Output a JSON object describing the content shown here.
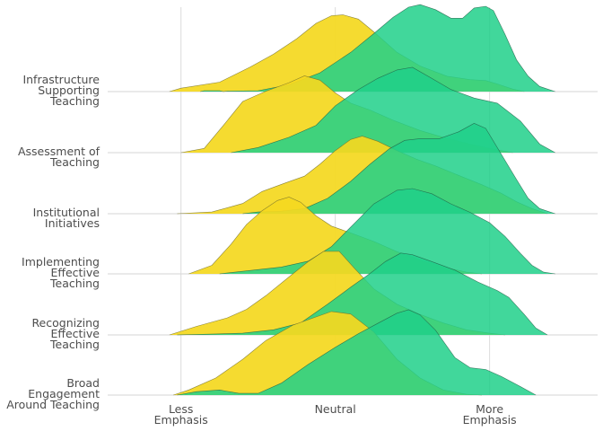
{
  "chart_data": {
    "type": "ridgeline",
    "title": "",
    "xlabel": "",
    "ylabel": "",
    "x_ticks": [
      {
        "value": 1,
        "lines": [
          "Less",
          "Emphasis"
        ]
      },
      {
        "value": 3,
        "lines": [
          "Neutral"
        ]
      },
      {
        "value": 5,
        "lines": [
          "More",
          "Emphasis"
        ]
      }
    ],
    "xlim": [
      0.05,
      6.4
    ],
    "grid": {
      "vertical": true,
      "horizontal_baselines": true
    },
    "legend": "none",
    "series_colors": [
      "#f4d820",
      "#20d08a"
    ],
    "categories": [
      {
        "lines": [
          "Infrastructure",
          "Supporting",
          "Teaching"
        ],
        "yellow": [
          [
            0.85,
            0
          ],
          [
            1.0,
            0.04
          ],
          [
            1.5,
            0.11
          ],
          [
            1.9,
            0.29
          ],
          [
            2.2,
            0.44
          ],
          [
            2.5,
            0.62
          ],
          [
            2.75,
            0.8
          ],
          [
            2.95,
            0.89
          ],
          [
            3.1,
            0.9
          ],
          [
            3.3,
            0.85
          ],
          [
            3.5,
            0.7
          ],
          [
            3.8,
            0.46
          ],
          [
            4.1,
            0.3
          ],
          [
            4.45,
            0.18
          ],
          [
            4.75,
            0.14
          ],
          [
            4.95,
            0.13
          ],
          [
            5.1,
            0.09
          ],
          [
            5.3,
            0.03
          ],
          [
            5.45,
            0
          ]
        ],
        "green": [
          [
            1.25,
            0
          ],
          [
            1.3,
            0.01
          ],
          [
            1.5,
            0.01
          ],
          [
            1.55,
            0
          ],
          [
            1.6,
            0.005
          ],
          [
            2.0,
            0.01
          ],
          [
            2.4,
            0.08
          ],
          [
            2.8,
            0.22
          ],
          [
            3.2,
            0.46
          ],
          [
            3.5,
            0.68
          ],
          [
            3.75,
            0.87
          ],
          [
            3.95,
            0.99
          ],
          [
            4.1,
            1.02
          ],
          [
            4.3,
            0.96
          ],
          [
            4.5,
            0.86
          ],
          [
            4.65,
            0.86
          ],
          [
            4.8,
            0.98
          ],
          [
            4.95,
            1.0
          ],
          [
            5.05,
            0.95
          ],
          [
            5.2,
            0.67
          ],
          [
            5.35,
            0.37
          ],
          [
            5.5,
            0.18
          ],
          [
            5.65,
            0.06
          ],
          [
            5.85,
            0
          ]
        ]
      },
      {
        "lines": [
          "Assessment of",
          "Teaching"
        ],
        "yellow": [
          [
            1.0,
            0
          ],
          [
            1.3,
            0.05
          ],
          [
            1.55,
            0.32
          ],
          [
            1.8,
            0.6
          ],
          [
            2.1,
            0.72
          ],
          [
            2.4,
            0.82
          ],
          [
            2.6,
            0.9
          ],
          [
            2.8,
            0.85
          ],
          [
            3.0,
            0.7
          ],
          [
            3.2,
            0.58
          ],
          [
            3.45,
            0.5
          ],
          [
            3.75,
            0.38
          ],
          [
            4.1,
            0.26
          ],
          [
            4.4,
            0.18
          ],
          [
            4.75,
            0.1
          ],
          [
            5.05,
            0.04
          ],
          [
            5.3,
            0
          ]
        ],
        "green": [
          [
            1.65,
            0
          ],
          [
            2.0,
            0.06
          ],
          [
            2.4,
            0.18
          ],
          [
            2.75,
            0.32
          ],
          [
            3.0,
            0.55
          ],
          [
            3.3,
            0.74
          ],
          [
            3.55,
            0.87
          ],
          [
            3.8,
            0.97
          ],
          [
            4.0,
            1.0
          ],
          [
            4.25,
            0.87
          ],
          [
            4.5,
            0.74
          ],
          [
            4.8,
            0.64
          ],
          [
            5.1,
            0.58
          ],
          [
            5.4,
            0.37
          ],
          [
            5.65,
            0.1
          ],
          [
            5.85,
            0
          ]
        ]
      },
      {
        "lines": [
          "Institutional",
          "Initiatives"
        ],
        "yellow": [
          [
            0.95,
            0
          ],
          [
            1.4,
            0.02
          ],
          [
            1.8,
            0.12
          ],
          [
            2.05,
            0.26
          ],
          [
            2.35,
            0.36
          ],
          [
            2.6,
            0.44
          ],
          [
            2.8,
            0.58
          ],
          [
            3.0,
            0.74
          ],
          [
            3.2,
            0.87
          ],
          [
            3.35,
            0.91
          ],
          [
            3.55,
            0.85
          ],
          [
            3.8,
            0.74
          ],
          [
            4.05,
            0.64
          ],
          [
            4.3,
            0.56
          ],
          [
            4.6,
            0.45
          ],
          [
            4.9,
            0.34
          ],
          [
            5.15,
            0.24
          ],
          [
            5.35,
            0.14
          ],
          [
            5.55,
            0.06
          ],
          [
            5.75,
            0
          ]
        ],
        "green": [
          [
            1.8,
            0
          ],
          [
            2.0,
            0.02
          ],
          [
            2.3,
            0.03
          ],
          [
            2.6,
            0.06
          ],
          [
            2.9,
            0.18
          ],
          [
            3.2,
            0.38
          ],
          [
            3.45,
            0.58
          ],
          [
            3.7,
            0.76
          ],
          [
            3.9,
            0.86
          ],
          [
            4.1,
            0.88
          ],
          [
            4.35,
            0.88
          ],
          [
            4.6,
            0.96
          ],
          [
            4.8,
            1.06
          ],
          [
            4.95,
            1.0
          ],
          [
            5.15,
            0.7
          ],
          [
            5.35,
            0.4
          ],
          [
            5.5,
            0.18
          ],
          [
            5.65,
            0.06
          ],
          [
            5.85,
            0
          ]
        ]
      },
      {
        "lines": [
          "Implementing",
          "Effective",
          "Teaching"
        ],
        "yellow": [
          [
            1.1,
            0
          ],
          [
            1.4,
            0.1
          ],
          [
            1.65,
            0.35
          ],
          [
            1.85,
            0.58
          ],
          [
            2.05,
            0.74
          ],
          [
            2.25,
            0.86
          ],
          [
            2.4,
            0.9
          ],
          [
            2.55,
            0.84
          ],
          [
            2.75,
            0.68
          ],
          [
            2.95,
            0.56
          ],
          [
            3.2,
            0.48
          ],
          [
            3.5,
            0.38
          ],
          [
            3.8,
            0.26
          ],
          [
            4.1,
            0.16
          ],
          [
            4.4,
            0.08
          ],
          [
            4.7,
            0.02
          ],
          [
            4.9,
            0
          ]
        ],
        "green": [
          [
            1.5,
            0
          ],
          [
            1.9,
            0.04
          ],
          [
            2.3,
            0.08
          ],
          [
            2.65,
            0.15
          ],
          [
            2.95,
            0.32
          ],
          [
            3.2,
            0.55
          ],
          [
            3.5,
            0.82
          ],
          [
            3.8,
            0.98
          ],
          [
            4.0,
            1.0
          ],
          [
            4.25,
            0.94
          ],
          [
            4.5,
            0.82
          ],
          [
            4.75,
            0.72
          ],
          [
            5.0,
            0.6
          ],
          [
            5.2,
            0.44
          ],
          [
            5.4,
            0.24
          ],
          [
            5.55,
            0.1
          ],
          [
            5.7,
            0.02
          ],
          [
            5.85,
            0
          ]
        ]
      },
      {
        "lines": [
          "Recognizing",
          "Effective",
          "Teaching"
        ],
        "yellow": [
          [
            0.85,
            0
          ],
          [
            1.2,
            0.1
          ],
          [
            1.6,
            0.2
          ],
          [
            1.85,
            0.3
          ],
          [
            2.1,
            0.46
          ],
          [
            2.4,
            0.68
          ],
          [
            2.65,
            0.86
          ],
          [
            2.85,
            0.98
          ],
          [
            3.05,
            0.98
          ],
          [
            3.25,
            0.78
          ],
          [
            3.5,
            0.54
          ],
          [
            3.8,
            0.36
          ],
          [
            4.1,
            0.24
          ],
          [
            4.4,
            0.14
          ],
          [
            4.7,
            0.06
          ],
          [
            5.0,
            0.02
          ],
          [
            5.2,
            0
          ]
        ],
        "green": [
          [
            0.95,
            0
          ],
          [
            1.4,
            0.01
          ],
          [
            1.8,
            0.02
          ],
          [
            2.2,
            0.06
          ],
          [
            2.55,
            0.14
          ],
          [
            2.9,
            0.36
          ],
          [
            3.2,
            0.56
          ],
          [
            3.45,
            0.72
          ],
          [
            3.65,
            0.86
          ],
          [
            3.85,
            0.96
          ],
          [
            4.0,
            0.94
          ],
          [
            4.25,
            0.86
          ],
          [
            4.55,
            0.76
          ],
          [
            4.85,
            0.62
          ],
          [
            5.1,
            0.52
          ],
          [
            5.25,
            0.44
          ],
          [
            5.45,
            0.24
          ],
          [
            5.6,
            0.08
          ],
          [
            5.75,
            0
          ]
        ]
      },
      {
        "lines": [
          "Broad",
          "Engagement",
          "Around Teaching"
        ],
        "yellow": [
          [
            0.9,
            0
          ],
          [
            1.1,
            0.06
          ],
          [
            1.45,
            0.2
          ],
          [
            1.8,
            0.42
          ],
          [
            2.1,
            0.64
          ],
          [
            2.45,
            0.82
          ],
          [
            2.7,
            0.9
          ],
          [
            2.95,
            0.98
          ],
          [
            3.2,
            0.95
          ],
          [
            3.5,
            0.74
          ],
          [
            3.8,
            0.42
          ],
          [
            4.1,
            0.2
          ],
          [
            4.4,
            0.06
          ],
          [
            4.7,
            0.01
          ],
          [
            4.9,
            0
          ]
        ],
        "green": [
          [
            0.95,
            0
          ],
          [
            1.2,
            0.04
          ],
          [
            1.5,
            0.06
          ],
          [
            1.75,
            0.02
          ],
          [
            2.0,
            0.02
          ],
          [
            2.3,
            0.14
          ],
          [
            2.65,
            0.36
          ],
          [
            3.0,
            0.56
          ],
          [
            3.3,
            0.72
          ],
          [
            3.55,
            0.84
          ],
          [
            3.8,
            0.96
          ],
          [
            3.95,
            1.0
          ],
          [
            4.1,
            0.94
          ],
          [
            4.3,
            0.76
          ],
          [
            4.55,
            0.44
          ],
          [
            4.75,
            0.32
          ],
          [
            4.95,
            0.3
          ],
          [
            5.15,
            0.22
          ],
          [
            5.4,
            0.1
          ],
          [
            5.6,
            0
          ]
        ]
      }
    ]
  }
}
